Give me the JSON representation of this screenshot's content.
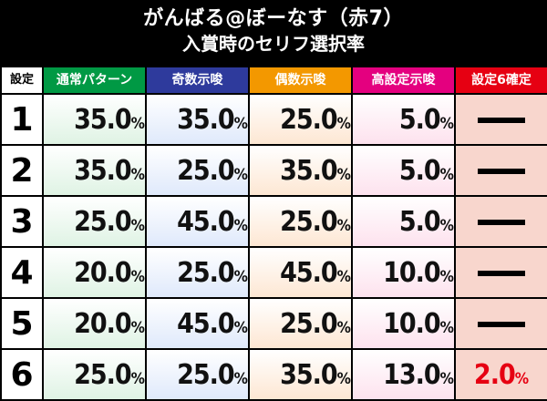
{
  "title": {
    "line1": "がんばる@ぼーなす（赤7）",
    "line2": "入賞時のセリフ選択率"
  },
  "colors": {
    "normal": "#009944",
    "odd": "#2e3a9c",
    "even": "#f39800",
    "high": "#e4007f",
    "six": "#e60012"
  },
  "headers": [
    "設定",
    "通常パターン",
    "奇数示唆",
    "偶数示唆",
    "高設定示唆",
    "設定6確定"
  ],
  "rows": [
    {
      "setting": "1",
      "values": [
        "35.0",
        "35.0",
        "25.0",
        "5.0"
      ],
      "six": null
    },
    {
      "setting": "2",
      "values": [
        "35.0",
        "25.0",
        "35.0",
        "5.0"
      ],
      "six": null
    },
    {
      "setting": "3",
      "values": [
        "25.0",
        "45.0",
        "25.0",
        "5.0"
      ],
      "six": null
    },
    {
      "setting": "4",
      "values": [
        "20.0",
        "25.0",
        "45.0",
        "10.0"
      ],
      "six": null
    },
    {
      "setting": "5",
      "values": [
        "20.0",
        "45.0",
        "25.0",
        "10.0"
      ],
      "six": null
    },
    {
      "setting": "6",
      "values": [
        "25.0",
        "25.0",
        "35.0",
        "13.0"
      ],
      "six": "2.0"
    }
  ],
  "unit": "%"
}
